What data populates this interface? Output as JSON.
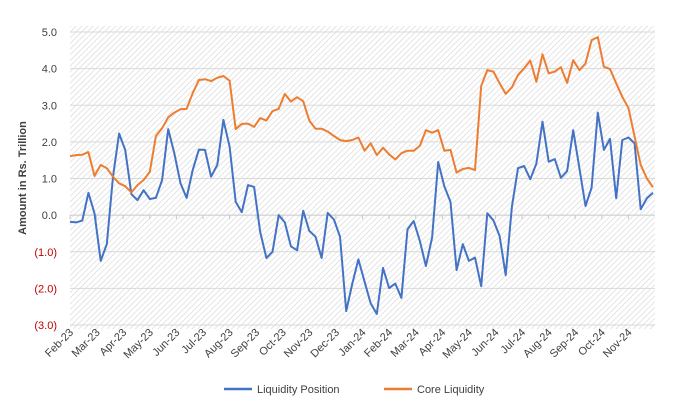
{
  "chart_data": {
    "type": "line",
    "title": "",
    "xlabel": "",
    "ylabel": "Amount in Rs. Trillion",
    "ylim": [
      -3.0,
      5.0
    ],
    "grid": true,
    "legend_position": "bottom",
    "y_ticks": [
      {
        "value": 5.0,
        "label": "5.0"
      },
      {
        "value": 4.0,
        "label": "4.0"
      },
      {
        "value": 3.0,
        "label": "3.0"
      },
      {
        "value": 2.0,
        "label": "2.0"
      },
      {
        "value": 1.0,
        "label": "1.0"
      },
      {
        "value": 0.0,
        "label": "0.0"
      },
      {
        "value": -1.0,
        "label": "(1.0)"
      },
      {
        "value": -2.0,
        "label": "(2.0)"
      },
      {
        "value": -3.0,
        "label": "(3.0)"
      }
    ],
    "x_tick_labels": [
      "Feb-23",
      "Mar-23",
      "Apr-23",
      "May-23",
      "Jun-23",
      "Jul-23",
      "Aug-23",
      "Sep-23",
      "Oct-23",
      "Nov-23",
      "Dec-23",
      "Jan-24",
      "Feb-24",
      "Mar-24",
      "Apr-24",
      "May-24",
      "Jun-24",
      "Jul-24",
      "Aug-24",
      "Sep-24",
      "Oct-24",
      "Nov-24"
    ],
    "negative_label_color": "#c00000",
    "series": [
      {
        "name": "Liquidity Position",
        "color": "#4472c4",
        "values": [
          -0.18,
          -0.2,
          -0.15,
          0.61,
          0.05,
          -1.25,
          -0.79,
          1.05,
          2.23,
          1.78,
          0.57,
          0.41,
          0.68,
          0.44,
          0.47,
          0.96,
          2.35,
          1.69,
          0.87,
          0.47,
          1.23,
          1.79,
          1.78,
          1.05,
          1.37,
          2.6,
          1.87,
          0.36,
          0.08,
          0.82,
          0.77,
          -0.46,
          -1.17,
          -1.0,
          0.0,
          -0.2,
          -0.85,
          -0.96,
          0.12,
          -0.43,
          -0.59,
          -1.17,
          0.06,
          -0.12,
          -0.59,
          -2.62,
          -1.87,
          -1.21,
          -1.82,
          -2.41,
          -2.7,
          -1.44,
          -1.99,
          -1.87,
          -2.26,
          -0.39,
          -0.16,
          -0.7,
          -1.39,
          -0.61,
          1.45,
          0.79,
          0.36,
          -1.5,
          -0.79,
          -1.25,
          -1.16,
          -1.94,
          0.05,
          -0.14,
          -0.57,
          -1.64,
          0.23,
          1.28,
          1.34,
          0.98,
          1.41,
          2.55,
          1.46,
          1.53,
          1.02,
          1.2,
          2.32,
          1.28,
          0.25,
          0.75,
          2.8,
          1.78,
          2.08,
          0.46,
          2.05,
          2.12,
          1.96,
          0.16,
          0.46,
          0.61
        ]
      },
      {
        "name": "Core Liquidity",
        "color": "#ed7d31",
        "values": [
          1.61,
          1.64,
          1.65,
          1.72,
          1.07,
          1.37,
          1.28,
          1.05,
          0.87,
          0.79,
          0.62,
          0.82,
          0.96,
          1.18,
          2.16,
          2.37,
          2.67,
          2.8,
          2.89,
          2.9,
          3.33,
          3.69,
          3.71,
          3.66,
          3.75,
          3.8,
          3.67,
          2.35,
          2.49,
          2.5,
          2.41,
          2.65,
          2.58,
          2.84,
          2.9,
          3.31,
          3.1,
          3.22,
          3.11,
          2.58,
          2.36,
          2.36,
          2.28,
          2.16,
          2.05,
          2.02,
          2.05,
          2.12,
          1.76,
          1.96,
          1.64,
          1.84,
          1.66,
          1.52,
          1.69,
          1.76,
          1.76,
          1.89,
          2.32,
          2.25,
          2.32,
          1.76,
          1.78,
          1.16,
          1.26,
          1.29,
          1.23,
          3.53,
          3.96,
          3.92,
          3.6,
          3.31,
          3.49,
          3.83,
          4.01,
          4.22,
          3.64,
          4.39,
          3.87,
          3.92,
          4.04,
          3.61,
          4.23,
          3.96,
          4.14,
          4.78,
          4.86,
          4.05,
          3.99,
          3.6,
          3.23,
          2.92,
          2.14,
          1.37,
          1.0,
          0.76
        ]
      }
    ]
  }
}
